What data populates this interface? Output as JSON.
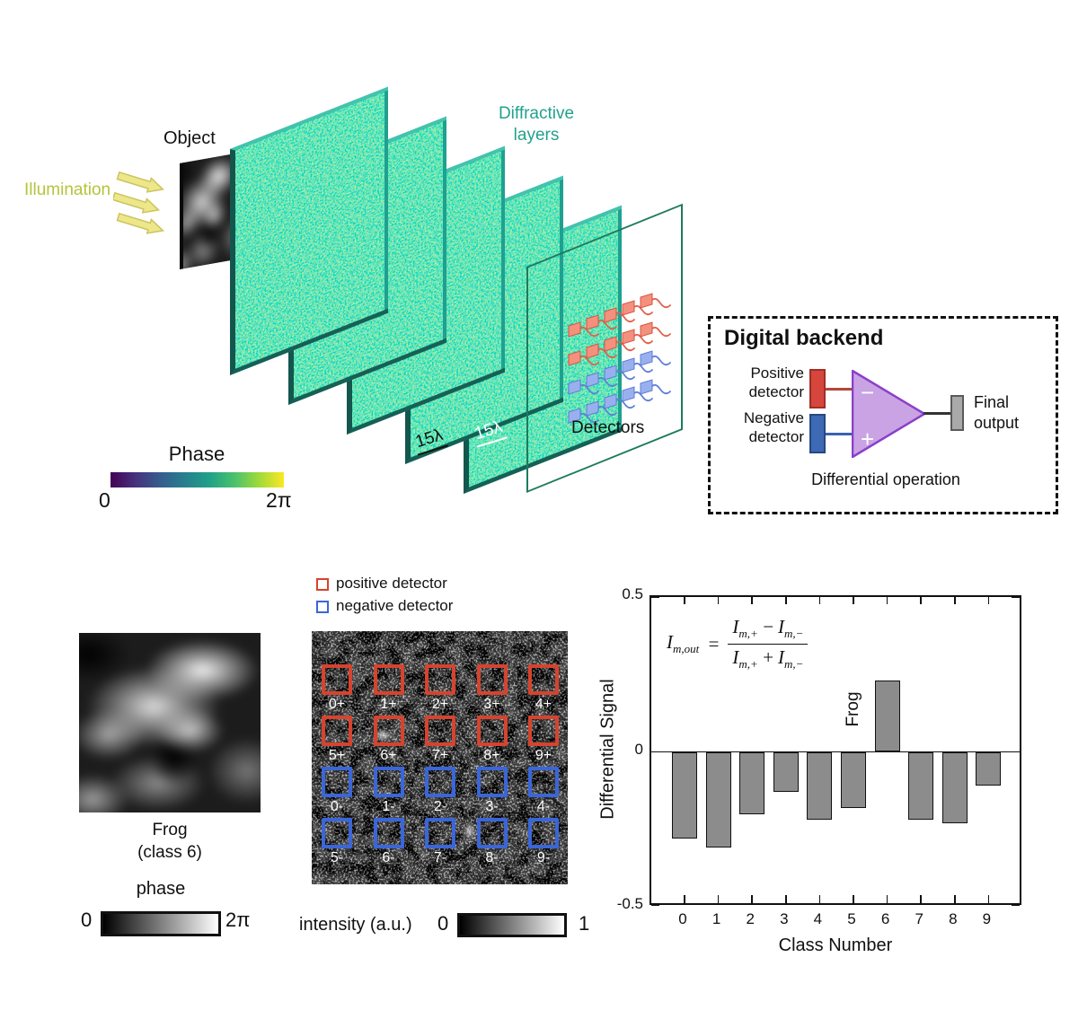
{
  "top_diagram": {
    "illumination_label": "Illumination",
    "object_label": "Object",
    "diffractive_layers_label": "Diffractive layers",
    "layer_count": 5,
    "scale_label_1": "15λ",
    "scale_label_2": "15λ",
    "detectors_label": "Detectors",
    "detector_array": {
      "rows": 4,
      "cols": 5,
      "positive_rows": 2,
      "negative_rows": 2
    },
    "phase_colorbar": {
      "title": "Phase",
      "min": "0",
      "max": "2π"
    }
  },
  "digital_backend": {
    "title": "Digital backend",
    "positive_detector_label": "Positive detector",
    "negative_detector_label": "Negative detector",
    "minus_input": "−",
    "plus_input": "+",
    "final_output_label": "Final output",
    "operation_label": "Differential operation"
  },
  "legend": {
    "positive_label": "positive detector",
    "negative_label": "negative detector"
  },
  "input_panel": {
    "caption_line1": "Frog",
    "caption_line2": "(class 6)",
    "colorbar": {
      "title": "phase",
      "min": "0",
      "max": "2π"
    }
  },
  "detector_panel": {
    "labels": [
      [
        "0+",
        "1+",
        "2+",
        "3+",
        "4+"
      ],
      [
        "5+",
        "6+",
        "7+",
        "8+",
        "9+"
      ],
      [
        "0-",
        "1-",
        "2-",
        "3-",
        "4-"
      ],
      [
        "5-",
        "6-",
        "7-",
        "8-",
        "9-"
      ]
    ],
    "colorbar": {
      "title": "intensity (a.u.)",
      "min": "0",
      "max": "1"
    }
  },
  "chart_data": {
    "type": "bar",
    "title": "",
    "xlabel": "Class Number",
    "ylabel": "Differential Signal",
    "categories": [
      "0",
      "1",
      "2",
      "3",
      "4",
      "5",
      "6",
      "7",
      "8",
      "9"
    ],
    "values": [
      -0.28,
      -0.31,
      -0.2,
      -0.13,
      -0.22,
      -0.18,
      0.23,
      -0.22,
      -0.23,
      -0.11
    ],
    "ylim": [
      -0.5,
      0.5
    ],
    "yticks": [
      "0.5",
      "0",
      "-0.5"
    ],
    "grid": false,
    "legend_position": "none",
    "bar_color": "#8c8c8c",
    "annotation": {
      "text": "Frog",
      "class_index": 6
    },
    "formula_text": "I_m,out = (I_m,+ − I_m,−) / (I_m,+ + I_m,−)",
    "formula": {
      "lhs": "I",
      "lhs_sub": "m,out",
      "eq": "=",
      "n1": "I",
      "n1_sub": "m,+",
      "n_op": "−",
      "n2": "I",
      "n2_sub": "m,−",
      "d1": "I",
      "d1_sub": "m,+",
      "d_op": "+",
      "d2": "I",
      "d2_sub": "m,−"
    }
  },
  "colors": {
    "illumination_text": "#b4c53c",
    "diffractive_text": "#23a18e",
    "layer_teal": "#1fa091",
    "plane_outline": "#1e7a5e",
    "positive_red": "#d6432e",
    "negative_blue": "#3a66d9",
    "detector_pos_fill": "#f4907e",
    "detector_neg_fill": "#9ab0ee",
    "opamp_fill": "#c9a3e4",
    "opamp_stroke": "#8a3fc9",
    "final_output_gray": "#a9a9a9",
    "bar_gray": "#8c8c8c"
  }
}
